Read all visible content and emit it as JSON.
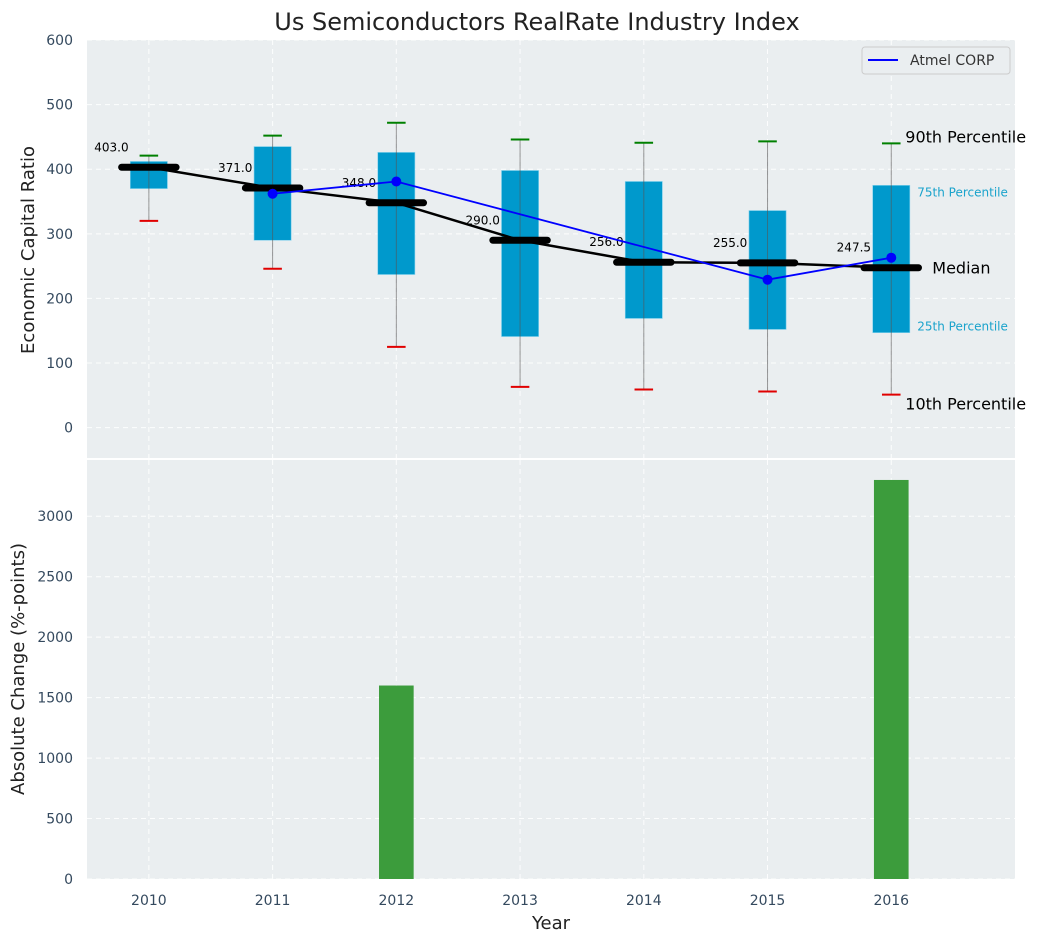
{
  "chart_data": [
    {
      "type": "box",
      "panel": "top",
      "title": "Us Semiconductors RealRate Industry Index",
      "xlabel": "",
      "ylabel": "Economic Capital Ratio",
      "x": [
        2010,
        2011,
        2012,
        2013,
        2014,
        2015,
        2016
      ],
      "xlim": [
        2009.5,
        2017
      ],
      "ylim": [
        -47,
        600
      ],
      "yticks": [
        0,
        100,
        200,
        300,
        400,
        500,
        600
      ],
      "grid": true,
      "percentiles": {
        "p10": [
          320,
          246,
          125,
          63,
          59,
          56,
          51
        ],
        "p25": [
          370,
          290,
          237,
          141,
          169,
          152,
          147
        ],
        "median": [
          403.0,
          371.0,
          348.0,
          290.0,
          256.0,
          255.0,
          247.5
        ],
        "p75": [
          412,
          435,
          426,
          398,
          381,
          336,
          375
        ],
        "p90": [
          421,
          452,
          472,
          446,
          441,
          443,
          440
        ]
      },
      "median_labels": [
        "403.0",
        "371.0",
        "348.0",
        "290.0",
        "256.0",
        "255.0",
        "247.5"
      ],
      "series": [
        {
          "name": "Atmel CORP",
          "x": [
            2011,
            2012,
            2013,
            2014,
            2015,
            2016
          ],
          "values": [
            362,
            381,
            null,
            null,
            229,
            263
          ],
          "color": "#0000ff"
        }
      ],
      "annotations": {
        "p90": "90th Percentile",
        "p75": "75th Percentile",
        "median": "Median",
        "p25": "25th Percentile",
        "p10": "10th Percentile"
      },
      "legend": {
        "entries": [
          "Atmel CORP"
        ],
        "placement": "top-right"
      },
      "colors": {
        "box": "#0099cc",
        "median": "#000000",
        "p90_cap": "#008000",
        "p10_cap": "#e00000",
        "whisker": "#888888",
        "annotation_blue": "#1aa3cc",
        "background": "#eaeef0"
      }
    },
    {
      "type": "bar",
      "panel": "bottom",
      "title": "",
      "xlabel": "Year",
      "ylabel": "Absolute Change (%-points)",
      "categories": [
        2010,
        2011,
        2012,
        2013,
        2014,
        2015,
        2016
      ],
      "tick_labels": [
        "2010",
        "2011",
        "2012",
        "2013",
        "2014",
        "2015",
        "2016"
      ],
      "values": [
        0,
        0,
        1600,
        0,
        0,
        0,
        3300
      ],
      "xlim": [
        2009.5,
        2017
      ],
      "ylim": [
        0,
        3465
      ],
      "yticks": [
        0,
        500,
        1000,
        1500,
        2000,
        2500,
        3000
      ],
      "grid": true,
      "colors": {
        "bar": "#3c9c3c",
        "background": "#eaeef0"
      }
    }
  ]
}
